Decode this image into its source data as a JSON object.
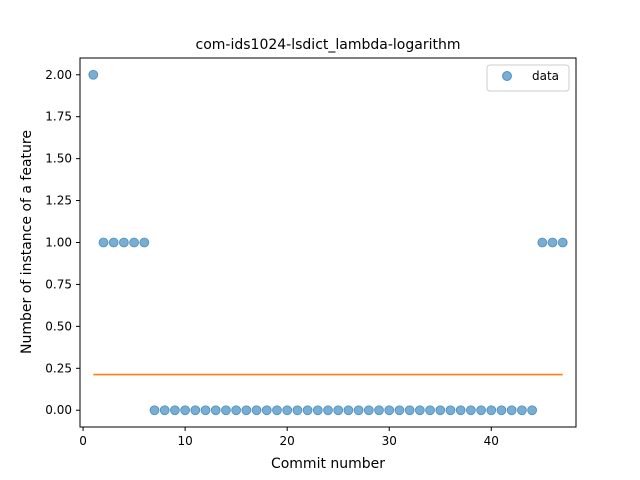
{
  "chart_data": {
    "type": "scatter",
    "title": "com-ids1024-lsdict_lambda-logarithm",
    "xlabel": "Commit number",
    "ylabel": "Number of instance of a feature",
    "xlim": [
      -0.3,
      48.3
    ],
    "ylim": [
      -0.1,
      2.1
    ],
    "xticks": [
      0,
      10,
      20,
      30,
      40
    ],
    "xtick_labels": [
      "0",
      "10",
      "20",
      "30",
      "40"
    ],
    "yticks": [
      0,
      0.25,
      0.5,
      0.75,
      1.0,
      1.25,
      1.5,
      1.75,
      2.0
    ],
    "ytick_labels": [
      "0.00",
      "0.25",
      "0.50",
      "0.75",
      "1.00",
      "1.25",
      "1.50",
      "1.75",
      "2.00"
    ],
    "grid": false,
    "legend": {
      "position": "top-right",
      "entries": [
        "data"
      ]
    },
    "series": [
      {
        "name": "data",
        "kind": "scatter",
        "color": "#1f77b4",
        "x": [
          1,
          2,
          3,
          4,
          5,
          6,
          7,
          8,
          9,
          10,
          11,
          12,
          13,
          14,
          15,
          16,
          17,
          18,
          19,
          20,
          21,
          22,
          23,
          24,
          25,
          26,
          27,
          28,
          29,
          30,
          31,
          32,
          33,
          34,
          35,
          36,
          37,
          38,
          39,
          40,
          41,
          42,
          43,
          44,
          45,
          46,
          47
        ],
        "y": [
          2,
          1,
          1,
          1,
          1,
          1,
          0,
          0,
          0,
          0,
          0,
          0,
          0,
          0,
          0,
          0,
          0,
          0,
          0,
          0,
          0,
          0,
          0,
          0,
          0,
          0,
          0,
          0,
          0,
          0,
          0,
          0,
          0,
          0,
          0,
          0,
          0,
          0,
          0,
          0,
          0,
          0,
          0,
          0,
          1,
          1,
          1
        ]
      },
      {
        "kind": "line",
        "color": "#ff7f0e",
        "x": [
          1,
          47
        ],
        "y": [
          0.2128,
          0.2128
        ]
      }
    ]
  }
}
